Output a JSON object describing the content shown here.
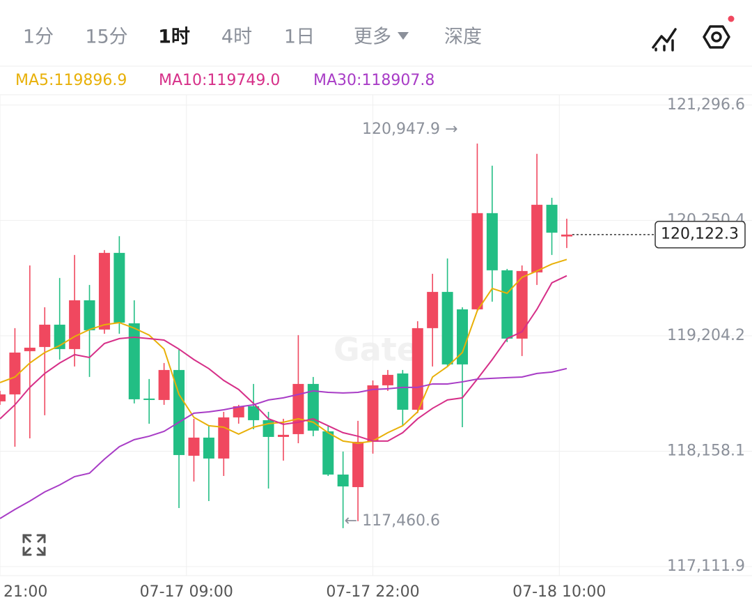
{
  "tabs": [
    "1分",
    "15分",
    "1时",
    "4时",
    "1日",
    "更多",
    "深度"
  ],
  "active_tab": 2,
  "chart_data": {
    "type": "candlestick",
    "x": [
      0,
      1,
      2,
      3,
      4,
      5,
      6,
      7,
      8,
      9,
      10,
      11,
      12,
      13,
      14,
      15,
      16,
      17,
      18,
      19,
      20,
      21,
      22,
      23,
      24,
      25,
      26,
      27,
      28,
      29,
      30,
      31,
      32,
      33,
      34,
      35,
      36,
      37,
      38
    ],
    "xlim": [
      0,
      50.42
    ],
    "xticks": [
      {
        "value": 0,
        "label": "21:00"
      },
      {
        "value": 12.5,
        "label": "07-17 09:00"
      },
      {
        "value": 25,
        "label": "07-17 22:00"
      },
      {
        "value": 37.5,
        "label": "07-18 10:00"
      }
    ],
    "open": [
      118610.2,
      118673.4,
      119065.3,
      119103.2,
      119305.5,
      119084.2,
      119526.7,
      119261.2,
      119956.5,
      119318.1,
      118635.5,
      118622.8,
      118894.6,
      118117.1,
      118281.5,
      118091.9,
      118464.8,
      118565.9,
      118439.5,
      118287.8,
      118313.1,
      118768.2,
      118338.4,
      117946.5,
      117832.7,
      118243.6,
      118755.6,
      118863.0,
      118534.3,
      119273.9,
      119602.6,
      119444.5,
      119444.5,
      120316.8,
      119798.5,
      119179.1,
      119779.6,
      120392.7,
      120105.0
    ],
    "high": [
      118705.0,
      119273.9,
      119842.8,
      119463.5,
      119729.0,
      119937.6,
      119665.8,
      119981.8,
      120108.3,
      119526.7,
      118812.4,
      118957.8,
      119084.2,
      118452.1,
      118388.9,
      118515.4,
      118578.6,
      118768.2,
      118515.4,
      118452.1,
      119210.7,
      118831.4,
      118388.9,
      118155.1,
      118433.2,
      118799.8,
      118894.6,
      118894.6,
      119337.1,
      119766.9,
      119906.0,
      119463.5,
      120947.9,
      120746.7,
      119811.2,
      119842.8,
      120854.1,
      120455.9,
      120266.3
    ],
    "low": [
      118578.6,
      118199.3,
      118275.2,
      118483.8,
      118989.4,
      118926.2,
      118831.4,
      119223.3,
      119223.3,
      118591.2,
      118407.9,
      118578.6,
      117643.1,
      117883.3,
      117706.3,
      117933.8,
      118407.9,
      118357.3,
      117820.0,
      118072.9,
      118230.9,
      118294.1,
      117933.8,
      117460.6,
      117524.0,
      118136.1,
      118705.0,
      118388.9,
      118502.7,
      118926.2,
      118926.2,
      118376.3,
      119425.6,
      119514.1,
      119147.5,
      119021.0,
      119665.8,
      119937.6,
      120000.8
    ],
    "close": [
      118673.4,
      119052.6,
      119096.9,
      119305.5,
      119084.2,
      119526.7,
      119254.9,
      119956.5,
      119324.4,
      118629.1,
      118622.8,
      118894.6,
      118123.5,
      118281.5,
      118091.9,
      118464.8,
      118565.9,
      118439.5,
      118287.8,
      118306.8,
      118768.2,
      118344.7,
      117946.5,
      117839.0,
      118243.6,
      118755.6,
      118850.4,
      118534.3,
      119273.9,
      119602.6,
      118945.2,
      118945.2,
      120316.8,
      119798.5,
      119179.1,
      119792.2,
      120392.7,
      120139.9,
      120122.3
    ],
    "up_color": "#f0485f",
    "down_color": "#22be84",
    "series": [
      {
        "name": "MA5:119896.9",
        "color": "#e8b008",
        "values": [
          118781,
          118831,
          118958,
          119053,
          119116,
          119198,
          119261,
          119305,
          119324,
          119274,
          119211,
          119084,
          118673,
          118465,
          118389,
          118376,
          118313,
          118376,
          118408,
          118421,
          118452,
          118421,
          118326,
          118250,
          118231,
          118250,
          118326,
          118389,
          118515,
          118831,
          118926,
          119053,
          119432,
          119634,
          119590,
          119735,
          119792,
          119855,
          119896.9
        ]
      },
      {
        "name": "MA10:119749.0",
        "color": "#d62f88",
        "values": [
          118452,
          118579,
          118737,
          118863,
          118958,
          119034,
          119008,
          119135,
          119179,
          119192,
          119179,
          119166,
          119084,
          118989,
          118907,
          118800,
          118718,
          118591,
          118452,
          118402,
          118421,
          118452,
          118389,
          118326,
          118294,
          118250,
          118250,
          118326,
          118452,
          118547,
          118623,
          118642,
          118812,
          118989,
          119179,
          119242,
          119445,
          119685,
          119749.0
        ]
      },
      {
        "name": "MA30:118907.8",
        "color": "#a83cc6",
        "values": [
          117548,
          117630,
          117706,
          117789,
          117852,
          117928,
          117959,
          118086,
          118199,
          118263,
          118294,
          118338,
          118421,
          118503,
          118515,
          118534,
          118560,
          118579,
          118623,
          118642,
          118673,
          118705,
          118692,
          118686,
          118692,
          118718,
          118724,
          118737,
          118737,
          118768,
          118768,
          118787,
          118812,
          118819,
          118825,
          118831,
          118863,
          118876,
          118907.8
        ]
      }
    ],
    "ylim": [
      117030,
      121390
    ],
    "yticks": [
      {
        "value": 117111.9,
        "label": "117,111.9"
      },
      {
        "value": 118158.1,
        "label": "118,158.1"
      },
      {
        "value": 119204.2,
        "label": "119,204.2"
      },
      {
        "value": 120250.4,
        "label": "120,250.4"
      },
      {
        "value": 121296.6,
        "label": "121,296.6"
      }
    ],
    "grid": true,
    "watermark": "Gate",
    "high_marker": {
      "index": 32,
      "value": 120947.9,
      "label": "120,947.9 →"
    },
    "low_marker": {
      "index": 23,
      "value": 117460.6,
      "label": "← 117,460.6"
    },
    "last_price": {
      "value": 120122.3,
      "label": "120,122.3"
    }
  }
}
